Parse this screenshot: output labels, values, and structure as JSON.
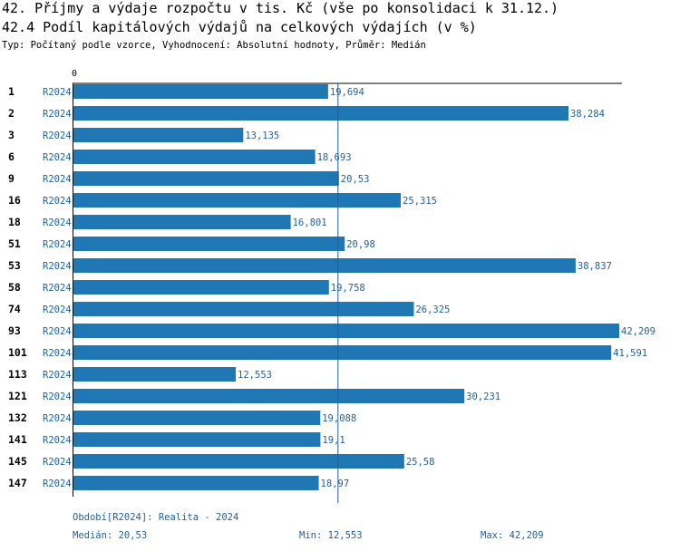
{
  "header": {
    "title": "42. Příjmy a výdaje rozpočtu v tis. Kč (vše po konsolidaci k 31.12.)",
    "subtitle": "42.4 Podíl kapitálových výdajů na celkových výdajích (v %)",
    "info": "Typ: Počítaný podle vzorce, Vyhodnocení: Absolutní hodnoty, Průměr: Medián"
  },
  "chart_data": {
    "type": "bar",
    "orientation": "horizontal",
    "title": "42.4 Podíl kapitálových výdajů na celkových výdajích (v %)",
    "x_tick_labels": [
      "0"
    ],
    "xlim": [
      0,
      42.209
    ],
    "series_label": "R2024",
    "categories": [
      "1",
      "2",
      "3",
      "6",
      "9",
      "16",
      "18",
      "51",
      "53",
      "58",
      "74",
      "93",
      "101",
      "113",
      "121",
      "132",
      "141",
      "145",
      "147"
    ],
    "values": [
      19.694,
      38.284,
      13.135,
      18.693,
      20.53,
      25.315,
      16.801,
      20.98,
      38.837,
      19.758,
      26.325,
      42.209,
      41.591,
      12.553,
      30.231,
      19.088,
      19.1,
      25.58,
      18.97
    ],
    "value_labels": [
      "19,694",
      "38,284",
      "13,135",
      "18,693",
      "20,53",
      "25,315",
      "16,801",
      "20,98",
      "38,837",
      "19,758",
      "26,325",
      "42,209",
      "41,591",
      "12,553",
      "30,231",
      "19,088",
      "19,1",
      "25,58",
      "18,97"
    ],
    "median": 20.53,
    "colors": {
      "bar": "#1f77b4",
      "label": "#1f5f9f",
      "median_line": "#1f5f9f",
      "axis": "#000000"
    }
  },
  "footer": {
    "period": "Období[R2024]: Realita - 2024",
    "median": "Medián: 20,53",
    "min": "Min: 12,553",
    "max": "Max: 42,209"
  }
}
